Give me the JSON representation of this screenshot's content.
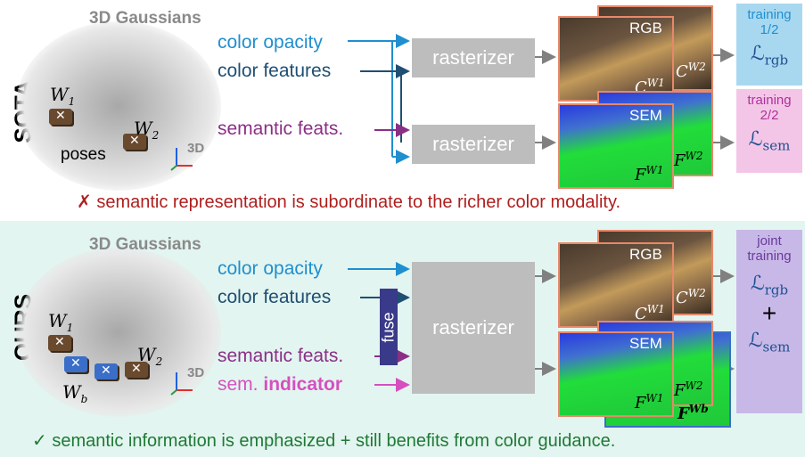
{
  "sota": {
    "row_label": "SOTA",
    "header": "3D Gaussians",
    "features": {
      "color_opacity": "color opacity",
      "color_features": "color features",
      "semantic_feats": "semantic feats."
    },
    "rasterizer_top": "rasterizer",
    "rasterizer_bottom": "rasterizer",
    "poses_label": "poses",
    "w1": "W",
    "w1_sub": "1",
    "w2": "W",
    "w2_sub": "2",
    "axes_label": "3D",
    "rgb_tag": "RGB",
    "sem_tag": "SEM",
    "rgb_front": "C",
    "rgb_front_sup": "W1",
    "rgb_back": "C",
    "rgb_back_sup": "W2",
    "sem_front": "F",
    "sem_front_sup": "W1",
    "sem_back": "F",
    "sem_back_sup": "W2",
    "training_rgb": "training",
    "training_rgb_step": "1/2",
    "training_sem": "training",
    "training_sem_step": "2/2",
    "loss_rgb": "rgb",
    "loss_sem": "sem",
    "note": "✗ semantic representation is subordinate to the richer color modality."
  },
  "ours": {
    "row_label": "OURS",
    "header": "3D Gaussians",
    "features": {
      "color_opacity": "color opacity",
      "color_features": "color features",
      "semantic_feats": "semantic feats.",
      "sem_prefix": "sem.",
      "indicator": "indicator"
    },
    "fuse": "fuse",
    "rasterizer": "rasterizer",
    "w1": "W",
    "w1_sub": "1",
    "w2": "W",
    "w2_sub": "2",
    "wb": "W",
    "wb_sub": "b",
    "axes_label": "3D",
    "rgb_tag": "RGB",
    "sem_tag": "SEM",
    "rgb_front": "C",
    "rgb_front_sup": "W1",
    "rgb_back": "C",
    "rgb_back_sup": "W2",
    "sem_front": "F",
    "sem_front_sup": "W1",
    "sem_back": "F",
    "sem_back_sup": "W2",
    "sem_third": "F",
    "sem_third_sup": "Wb",
    "joint_training": "joint training",
    "loss_rgb": "rgb",
    "plus": "+",
    "loss_sem": "sem",
    "note": "✓ semantic information is emphasized + still benefits from color guidance."
  },
  "colors": {
    "blue": "#1f8fcf",
    "navy": "#1f4f73",
    "purple": "#8b2f86",
    "pink": "#d64fc0",
    "red_note": "#b01e1e",
    "green_note": "#1e7a35",
    "rasterizer_gray": "#bdbdbd",
    "fuse_bg": "#3a3a8a",
    "training1_bg": "#a8d8f0",
    "training2_bg": "#f3c6e8",
    "joint_bg": "#c8b8e8"
  }
}
